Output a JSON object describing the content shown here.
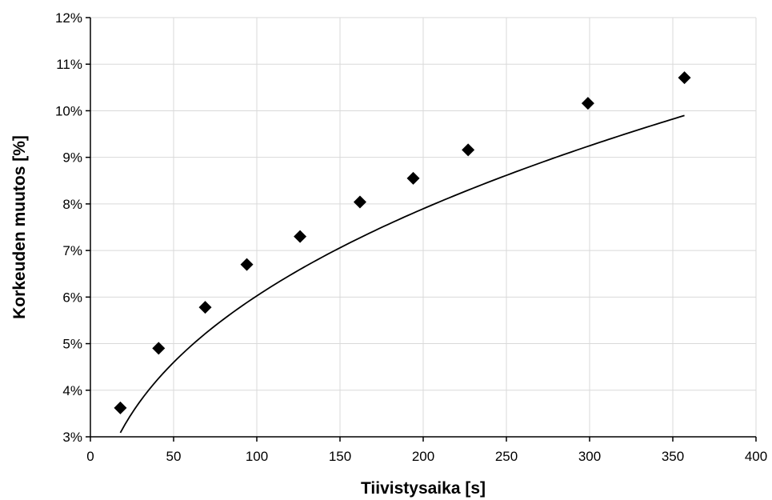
{
  "chart_data": {
    "type": "scatter",
    "title": "",
    "xlabel": "Tiivistysaika [s]",
    "ylabel": "Korkeuden muutos [%]",
    "xlim": [
      0,
      400
    ],
    "ylim": [
      3,
      12
    ],
    "x_ticks": [
      0,
      50,
      100,
      150,
      200,
      250,
      300,
      350,
      400
    ],
    "x_tick_labels": [
      "0",
      "50",
      "100",
      "150",
      "200",
      "250",
      "300",
      "350",
      "400"
    ],
    "y_ticks": [
      3,
      4,
      5,
      6,
      7,
      8,
      9,
      10,
      11,
      12
    ],
    "y_tick_labels": [
      "3%",
      "4%",
      "5%",
      "6%",
      "7%",
      "8%",
      "9%",
      "10%",
      "11%",
      "12%"
    ],
    "grid": {
      "vertical": true,
      "horizontal": true
    },
    "legend": "none",
    "marker": "diamond",
    "colors": {
      "marker": "#000000",
      "trendline": "#000000",
      "grid": "#d9d9d9",
      "axis": "#000000"
    },
    "series": [
      {
        "x": [
          18,
          41,
          69,
          94,
          126,
          162,
          194,
          227,
          299,
          357
        ],
        "y": [
          3.62,
          4.9,
          5.78,
          6.7,
          7.3,
          8.04,
          8.55,
          9.16,
          10.16,
          10.71
        ]
      }
    ],
    "trendline": {
      "type": "power",
      "a": 1.0,
      "b": 0.39
    }
  }
}
